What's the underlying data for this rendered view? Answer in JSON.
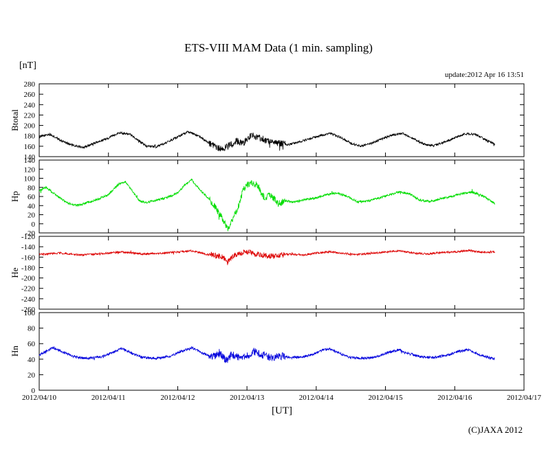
{
  "header": {
    "title": "ETS-VIII MAM Data (1 min. sampling)",
    "unit_label": "[nT]",
    "update_text": "update:2012 Apr 16 13:51"
  },
  "footer": {
    "xlabel": "[UT]",
    "copyright": "(C)JAXA 2012"
  },
  "chart_data": {
    "type": "line",
    "title": "ETS-VIII MAM Data (1 min. sampling)",
    "xlabel": "[UT]",
    "ylabel_unit": "[nT]",
    "x_range": [
      0,
      7
    ],
    "x_tick_labels": [
      "2012/04/10",
      "2012/04/11",
      "2012/04/12",
      "2012/04/13",
      "2012/04/14",
      "2012/04/15",
      "2012/04/16",
      "2012/04/17"
    ],
    "data_end": 6.58,
    "grid": false,
    "legend": "none",
    "disturbance": {
      "window": [
        2.45,
        3.55
      ],
      "factor": 3
    },
    "panels": [
      {
        "name": "Btotal",
        "color": "#000000",
        "ylim": [
          140,
          280
        ],
        "ytick_step": 20,
        "noise": 2.2,
        "control": [
          [
            0,
            178
          ],
          [
            0.15,
            183
          ],
          [
            0.3,
            172
          ],
          [
            0.5,
            161
          ],
          [
            0.65,
            158
          ],
          [
            0.8,
            166
          ],
          [
            1.0,
            176
          ],
          [
            1.15,
            186
          ],
          [
            1.3,
            184
          ],
          [
            1.45,
            170
          ],
          [
            1.55,
            160
          ],
          [
            1.7,
            159
          ],
          [
            1.85,
            168
          ],
          [
            2.0,
            178
          ],
          [
            2.15,
            188
          ],
          [
            2.3,
            180
          ],
          [
            2.45,
            166
          ],
          [
            2.55,
            157
          ],
          [
            2.65,
            155
          ],
          [
            2.75,
            162
          ],
          [
            2.85,
            170
          ],
          [
            2.95,
            166
          ],
          [
            3.05,
            180
          ],
          [
            3.15,
            178
          ],
          [
            3.3,
            170
          ],
          [
            3.45,
            166
          ],
          [
            3.6,
            163
          ],
          [
            3.75,
            168
          ],
          [
            3.9,
            174
          ],
          [
            4.05,
            180
          ],
          [
            4.2,
            185
          ],
          [
            4.35,
            177
          ],
          [
            4.5,
            166
          ],
          [
            4.65,
            160
          ],
          [
            4.8,
            166
          ],
          [
            4.95,
            174
          ],
          [
            5.1,
            182
          ],
          [
            5.25,
            185
          ],
          [
            5.4,
            175
          ],
          [
            5.55,
            164
          ],
          [
            5.7,
            161
          ],
          [
            5.85,
            168
          ],
          [
            6.0,
            176
          ],
          [
            6.15,
            184
          ],
          [
            6.3,
            183
          ],
          [
            6.45,
            172
          ],
          [
            6.58,
            164
          ]
        ]
      },
      {
        "name": "Hp",
        "color": "#00dd00",
        "ylim": [
          -20,
          140
        ],
        "ytick_step": 20,
        "noise": 2.5,
        "control": [
          [
            0,
            72
          ],
          [
            0.1,
            80
          ],
          [
            0.25,
            62
          ],
          [
            0.4,
            46
          ],
          [
            0.55,
            40
          ],
          [
            0.7,
            47
          ],
          [
            0.85,
            54
          ],
          [
            1.0,
            64
          ],
          [
            1.15,
            88
          ],
          [
            1.25,
            92
          ],
          [
            1.35,
            70
          ],
          [
            1.45,
            50
          ],
          [
            1.55,
            47
          ],
          [
            1.7,
            52
          ],
          [
            1.85,
            58
          ],
          [
            2.0,
            68
          ],
          [
            2.1,
            85
          ],
          [
            2.2,
            97
          ],
          [
            2.3,
            78
          ],
          [
            2.45,
            55
          ],
          [
            2.55,
            35
          ],
          [
            2.65,
            10
          ],
          [
            2.72,
            -12
          ],
          [
            2.78,
            8
          ],
          [
            2.85,
            28
          ],
          [
            2.95,
            75
          ],
          [
            3.05,
            92
          ],
          [
            3.15,
            85
          ],
          [
            3.25,
            58
          ],
          [
            3.35,
            62
          ],
          [
            3.45,
            44
          ],
          [
            3.55,
            50
          ],
          [
            3.7,
            48
          ],
          [
            3.85,
            53
          ],
          [
            4.0,
            57
          ],
          [
            4.15,
            64
          ],
          [
            4.3,
            68
          ],
          [
            4.45,
            60
          ],
          [
            4.6,
            48
          ],
          [
            4.75,
            50
          ],
          [
            4.9,
            56
          ],
          [
            5.05,
            63
          ],
          [
            5.2,
            70
          ],
          [
            5.35,
            66
          ],
          [
            5.5,
            52
          ],
          [
            5.65,
            49
          ],
          [
            5.8,
            55
          ],
          [
            5.95,
            60
          ],
          [
            6.1,
            66
          ],
          [
            6.25,
            70
          ],
          [
            6.4,
            62
          ],
          [
            6.5,
            52
          ],
          [
            6.58,
            44
          ]
        ]
      },
      {
        "name": "He",
        "color": "#dd0000",
        "ylim": [
          -260,
          -120
        ],
        "ytick_step": 20,
        "noise": 1.8,
        "control": [
          [
            0,
            -155
          ],
          [
            0.3,
            -152
          ],
          [
            0.6,
            -156
          ],
          [
            0.9,
            -153
          ],
          [
            1.2,
            -150
          ],
          [
            1.5,
            -154
          ],
          [
            1.8,
            -152
          ],
          [
            2.0,
            -150
          ],
          [
            2.2,
            -148
          ],
          [
            2.4,
            -154
          ],
          [
            2.55,
            -157
          ],
          [
            2.65,
            -160
          ],
          [
            2.72,
            -170
          ],
          [
            2.8,
            -158
          ],
          [
            2.9,
            -152
          ],
          [
            3.0,
            -150
          ],
          [
            3.2,
            -156
          ],
          [
            3.4,
            -158
          ],
          [
            3.6,
            -154
          ],
          [
            3.8,
            -156
          ],
          [
            4.0,
            -152
          ],
          [
            4.2,
            -150
          ],
          [
            4.4,
            -153
          ],
          [
            4.6,
            -155
          ],
          [
            4.8,
            -153
          ],
          [
            5.0,
            -150
          ],
          [
            5.2,
            -148
          ],
          [
            5.4,
            -152
          ],
          [
            5.6,
            -154
          ],
          [
            5.8,
            -151
          ],
          [
            6.0,
            -150
          ],
          [
            6.2,
            -147
          ],
          [
            6.4,
            -151
          ],
          [
            6.58,
            -150
          ]
        ]
      },
      {
        "name": "Hn",
        "color": "#0000dd",
        "ylim": [
          0,
          100
        ],
        "ytick_step": 20,
        "noise": 1.6,
        "control": [
          [
            0,
            45
          ],
          [
            0.2,
            55
          ],
          [
            0.35,
            49
          ],
          [
            0.5,
            43
          ],
          [
            0.7,
            41
          ],
          [
            0.9,
            43
          ],
          [
            1.05,
            48
          ],
          [
            1.2,
            54
          ],
          [
            1.35,
            47
          ],
          [
            1.5,
            42
          ],
          [
            1.7,
            41
          ],
          [
            1.9,
            44
          ],
          [
            2.05,
            50
          ],
          [
            2.2,
            55
          ],
          [
            2.35,
            48
          ],
          [
            2.5,
            43
          ],
          [
            2.62,
            47
          ],
          [
            2.7,
            38
          ],
          [
            2.78,
            46
          ],
          [
            2.9,
            42
          ],
          [
            3.0,
            44
          ],
          [
            3.1,
            50
          ],
          [
            3.2,
            46
          ],
          [
            3.35,
            42
          ],
          [
            3.5,
            44
          ],
          [
            3.65,
            42
          ],
          [
            3.8,
            43
          ],
          [
            3.95,
            46
          ],
          [
            4.1,
            52
          ],
          [
            4.2,
            53
          ],
          [
            4.35,
            47
          ],
          [
            4.5,
            42
          ],
          [
            4.7,
            41
          ],
          [
            4.9,
            44
          ],
          [
            5.05,
            49
          ],
          [
            5.2,
            52
          ],
          [
            5.35,
            47
          ],
          [
            5.5,
            43
          ],
          [
            5.7,
            42
          ],
          [
            5.9,
            45
          ],
          [
            6.05,
            50
          ],
          [
            6.2,
            52
          ],
          [
            6.35,
            46
          ],
          [
            6.5,
            42
          ],
          [
            6.58,
            40
          ]
        ]
      }
    ]
  }
}
